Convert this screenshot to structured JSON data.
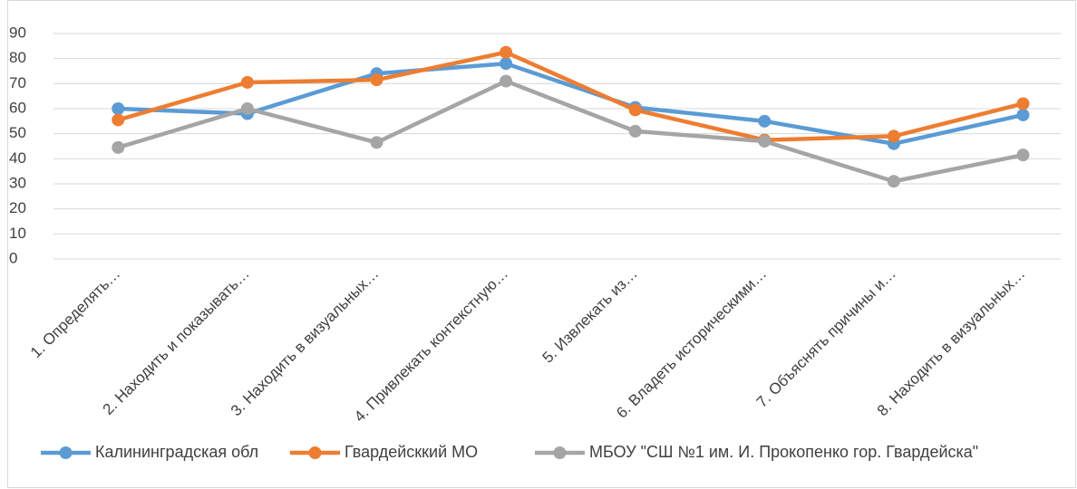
{
  "chart_data": {
    "type": "line",
    "categories": [
      "1. Определять…",
      "2. Находить и показывать…",
      "3. Находить в визуальных…",
      "4. Привлекать контекстную…",
      "5. Извлекать из…",
      "6. Владеть историческими…",
      "7. Объяснять причины и…",
      "8. Находить в визуальных…"
    ],
    "series": [
      {
        "name": "Калининградская обл",
        "color": "#5b9bd5",
        "values": [
          60,
          58,
          74,
          78,
          60.5,
          55,
          46,
          57.5
        ]
      },
      {
        "name": "Гвардейсккий МО",
        "color": "#ed7d31",
        "values": [
          55.5,
          70.5,
          71.5,
          82.5,
          59.5,
          47.5,
          49,
          62
        ]
      },
      {
        "name": "МБОУ \"СШ №1 им. И. Прокопенко гор. Гвардейска\"",
        "color": "#a5a5a5",
        "values": [
          44.5,
          60,
          46.5,
          71,
          51,
          47,
          31,
          41.5
        ]
      }
    ],
    "ylim": [
      0,
      90
    ],
    "yticks": [
      0,
      10,
      20,
      30,
      40,
      50,
      60,
      70,
      80,
      90
    ],
    "grid": true,
    "legend": "bottom"
  }
}
